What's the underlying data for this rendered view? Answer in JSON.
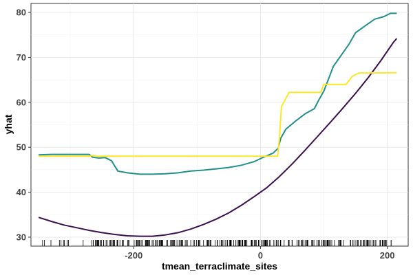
{
  "chart_data": {
    "type": "line",
    "xlabel": "tmean_terraclimate_sites",
    "ylabel": "yhat",
    "xlim": [
      -362,
      233
    ],
    "ylim": [
      28,
      82
    ],
    "x_ticks": [
      -200,
      0,
      200
    ],
    "x_tick_labels": [
      "-200",
      "0",
      "200"
    ],
    "y_ticks": [
      30,
      40,
      50,
      60,
      70,
      80
    ],
    "y_tick_labels": [
      "30",
      "40",
      "50",
      "60",
      "70",
      "80"
    ],
    "grid": true,
    "legend": "none",
    "series": [
      {
        "color": "#3b0f4f",
        "points": [
          [
            -350,
            34.4
          ],
          [
            -330,
            33.5
          ],
          [
            -310,
            32.7
          ],
          [
            -290,
            32.1
          ],
          [
            -270,
            31.5
          ],
          [
            -250,
            31.0
          ],
          [
            -230,
            30.6
          ],
          [
            -210,
            30.3
          ],
          [
            -190,
            30.2
          ],
          [
            -170,
            30.2
          ],
          [
            -150,
            30.5
          ],
          [
            -130,
            31.0
          ],
          [
            -110,
            31.8
          ],
          [
            -90,
            32.8
          ],
          [
            -70,
            34.0
          ],
          [
            -50,
            35.4
          ],
          [
            -30,
            37.1
          ],
          [
            -10,
            39.0
          ],
          [
            10,
            41.0
          ],
          [
            30,
            43.5
          ],
          [
            50,
            46.3
          ],
          [
            70,
            49.3
          ],
          [
            90,
            52.4
          ],
          [
            110,
            55.5
          ],
          [
            130,
            58.7
          ],
          [
            150,
            62.0
          ],
          [
            170,
            65.5
          ],
          [
            190,
            69.3
          ],
          [
            210,
            73.4
          ],
          [
            215,
            74.2
          ]
        ]
      },
      {
        "color": "#21908c",
        "points": [
          [
            -350,
            48.3
          ],
          [
            -330,
            48.4
          ],
          [
            -310,
            48.4
          ],
          [
            -290,
            48.4
          ],
          [
            -270,
            48.4
          ],
          [
            -265,
            47.8
          ],
          [
            -255,
            47.6
          ],
          [
            -245,
            47.7
          ],
          [
            -235,
            47.0
          ],
          [
            -225,
            44.7
          ],
          [
            -210,
            44.3
          ],
          [
            -190,
            44.0
          ],
          [
            -170,
            44.0
          ],
          [
            -150,
            44.1
          ],
          [
            -130,
            44.3
          ],
          [
            -110,
            44.7
          ],
          [
            -90,
            44.9
          ],
          [
            -70,
            45.2
          ],
          [
            -50,
            45.5
          ],
          [
            -30,
            46.0
          ],
          [
            -10,
            46.8
          ],
          [
            5,
            47.8
          ],
          [
            20,
            48.7
          ],
          [
            28,
            49.8
          ],
          [
            32,
            52.0
          ],
          [
            40,
            54.0
          ],
          [
            55,
            55.8
          ],
          [
            70,
            57.4
          ],
          [
            85,
            58.6
          ],
          [
            92,
            60.5
          ],
          [
            100,
            62.5
          ],
          [
            115,
            68.0
          ],
          [
            130,
            71.0
          ],
          [
            140,
            73.0
          ],
          [
            150,
            75.5
          ],
          [
            165,
            77.0
          ],
          [
            180,
            78.5
          ],
          [
            195,
            79.1
          ],
          [
            205,
            79.8
          ],
          [
            215,
            79.8
          ]
        ]
      },
      {
        "color": "#fde725",
        "points": [
          [
            -350,
            48.0
          ],
          [
            -270,
            48.0
          ],
          [
            -265,
            48.2
          ],
          [
            -260,
            48.0
          ],
          [
            25,
            48.0
          ],
          [
            27,
            48.0
          ],
          [
            30,
            52.0
          ],
          [
            33,
            59.0
          ],
          [
            45,
            62.2
          ],
          [
            95,
            62.2
          ],
          [
            100,
            64.0
          ],
          [
            135,
            64.0
          ],
          [
            145,
            65.8
          ],
          [
            155,
            66.5
          ],
          [
            215,
            66.6
          ]
        ]
      }
    ]
  }
}
